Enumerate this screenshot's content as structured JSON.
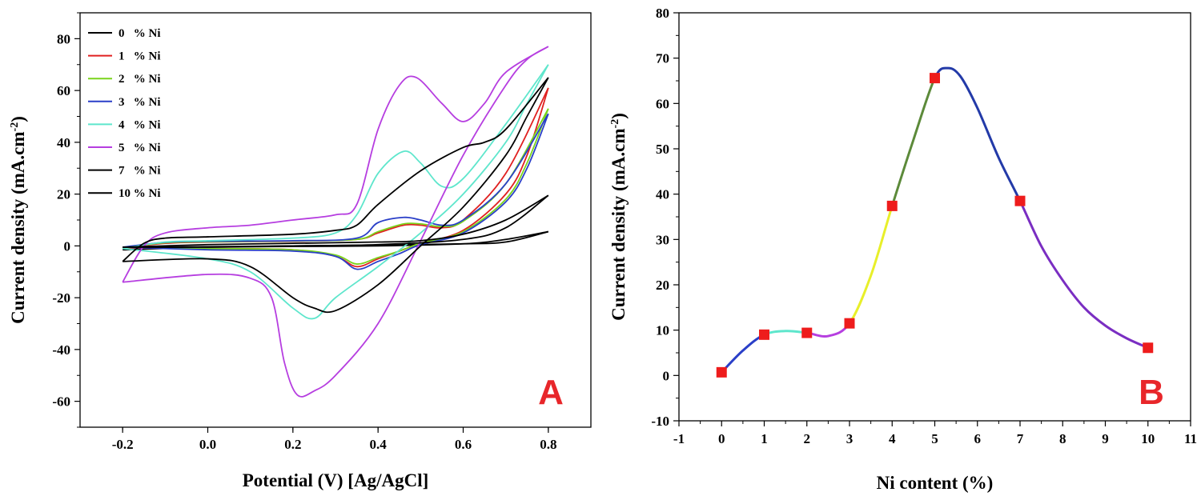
{
  "chart_data": [
    {
      "type": "line",
      "panel_label": "A",
      "xlabel": "Potential (V) [Ag/AgCl]",
      "ylabel": "Current density (mA.cm",
      "ylabel_sup": "-2",
      "ylabel_close": ")",
      "xlim": [
        -0.3,
        0.9
      ],
      "ylim": [
        -70,
        90
      ],
      "x_ticks": [
        -0.2,
        0.0,
        0.2,
        0.4,
        0.6,
        0.8
      ],
      "x_tick_labels": [
        "-0.2",
        "0.0",
        "0.2",
        "0.4",
        "0.6",
        "0.8"
      ],
      "y_ticks": [
        -60,
        -40,
        -20,
        0,
        20,
        40,
        60,
        80
      ],
      "y_tick_labels": [
        "-60",
        "-40",
        "-20",
        "0",
        "20",
        "40",
        "60",
        "80"
      ],
      "legend_position": "top-left",
      "series": [
        {
          "name": "0   % Ni",
          "color": "#000000",
          "forward": [
            [
              -0.2,
              -1.5
            ],
            [
              0.0,
              -0.5
            ],
            [
              0.2,
              -0.2
            ],
            [
              0.4,
              0.0
            ],
            [
              0.6,
              0.8
            ],
            [
              0.7,
              2.5
            ],
            [
              0.8,
              5.5
            ]
          ],
          "reverse": [
            [
              0.8,
              5.5
            ],
            [
              0.7,
              1.5
            ],
            [
              0.6,
              0.8
            ],
            [
              0.4,
              0.3
            ],
            [
              0.2,
              0.0
            ],
            [
              0.0,
              -0.3
            ],
            [
              -0.2,
              -0.5
            ]
          ]
        },
        {
          "name": "1   % Ni",
          "color": "#e02020",
          "forward": [
            [
              -0.2,
              -0.8
            ],
            [
              -0.1,
              1.0
            ],
            [
              0.0,
              1.5
            ],
            [
              0.2,
              1.8
            ],
            [
              0.35,
              2.5
            ],
            [
              0.4,
              5.0
            ],
            [
              0.46,
              8.0
            ],
            [
              0.5,
              8.0
            ],
            [
              0.55,
              7.0
            ],
            [
              0.6,
              10.0
            ],
            [
              0.7,
              28.0
            ],
            [
              0.8,
              61.0
            ]
          ],
          "reverse": [
            [
              0.8,
              61.0
            ],
            [
              0.75,
              35.0
            ],
            [
              0.7,
              20.0
            ],
            [
              0.6,
              6.0
            ],
            [
              0.5,
              1.0
            ],
            [
              0.45,
              -2.0
            ],
            [
              0.4,
              -5.0
            ],
            [
              0.35,
              -8.0
            ],
            [
              0.3,
              -4.0
            ],
            [
              0.2,
              -1.5
            ],
            [
              0.0,
              -1.0
            ],
            [
              -0.2,
              -0.8
            ]
          ]
        },
        {
          "name": "2   % Ni",
          "color": "#7ad41c",
          "forward": [
            [
              -0.2,
              -0.6
            ],
            [
              -0.1,
              1.2
            ],
            [
              0.0,
              1.6
            ],
            [
              0.2,
              1.9
            ],
            [
              0.35,
              2.5
            ],
            [
              0.4,
              5.5
            ],
            [
              0.46,
              8.5
            ],
            [
              0.5,
              8.5
            ],
            [
              0.55,
              7.5
            ],
            [
              0.6,
              9.5
            ],
            [
              0.7,
              24.0
            ],
            [
              0.8,
              53.0
            ]
          ],
          "reverse": [
            [
              0.8,
              53.0
            ],
            [
              0.75,
              32.0
            ],
            [
              0.7,
              18.0
            ],
            [
              0.6,
              5.5
            ],
            [
              0.5,
              1.0
            ],
            [
              0.45,
              -2.0
            ],
            [
              0.4,
              -4.5
            ],
            [
              0.35,
              -7.0
            ],
            [
              0.3,
              -3.5
            ],
            [
              0.2,
              -1.5
            ],
            [
              0.0,
              -1.0
            ],
            [
              -0.2,
              -0.6
            ]
          ]
        },
        {
          "name": "3   % Ni",
          "color": "#2a3fc8",
          "forward": [
            [
              -0.2,
              -0.5
            ],
            [
              -0.1,
              1.4
            ],
            [
              0.0,
              1.8
            ],
            [
              0.2,
              2.0
            ],
            [
              0.35,
              3.0
            ],
            [
              0.4,
              9.0
            ],
            [
              0.46,
              11.0
            ],
            [
              0.5,
              10.0
            ],
            [
              0.55,
              8.0
            ],
            [
              0.6,
              10.0
            ],
            [
              0.7,
              24.0
            ],
            [
              0.8,
              51.0
            ]
          ],
          "reverse": [
            [
              0.8,
              51.0
            ],
            [
              0.75,
              30.0
            ],
            [
              0.7,
              17.0
            ],
            [
              0.6,
              5.0
            ],
            [
              0.5,
              0.5
            ],
            [
              0.45,
              -3.0
            ],
            [
              0.4,
              -6.0
            ],
            [
              0.35,
              -9.0
            ],
            [
              0.3,
              -4.0
            ],
            [
              0.2,
              -2.0
            ],
            [
              0.0,
              -1.5
            ],
            [
              -0.2,
              -0.5
            ]
          ]
        },
        {
          "name": "4   % Ni",
          "color": "#5ee6cc",
          "forward": [
            [
              -0.2,
              -1.0
            ],
            [
              -0.1,
              1.5
            ],
            [
              0.0,
              2.0
            ],
            [
              0.2,
              3.0
            ],
            [
              0.3,
              5.0
            ],
            [
              0.35,
              12.0
            ],
            [
              0.4,
              28.0
            ],
            [
              0.46,
              36.5
            ],
            [
              0.5,
              32.0
            ],
            [
              0.55,
              23.0
            ],
            [
              0.6,
              26.0
            ],
            [
              0.7,
              47.0
            ],
            [
              0.8,
              70.0
            ]
          ],
          "reverse": [
            [
              0.8,
              70.0
            ],
            [
              0.75,
              55.0
            ],
            [
              0.7,
              40.0
            ],
            [
              0.6,
              20.0
            ],
            [
              0.5,
              5.0
            ],
            [
              0.4,
              -8.0
            ],
            [
              0.3,
              -20.0
            ],
            [
              0.25,
              -28.0
            ],
            [
              0.2,
              -24.0
            ],
            [
              0.1,
              -10.0
            ],
            [
              0.0,
              -5.0
            ],
            [
              -0.2,
              -1.0
            ]
          ]
        },
        {
          "name": "5   % Ni",
          "color": "#b63ee0",
          "forward": [
            [
              -0.2,
              -14.0
            ],
            [
              -0.15,
              0.0
            ],
            [
              -0.1,
              5.0
            ],
            [
              0.0,
              7.0
            ],
            [
              0.1,
              8.0
            ],
            [
              0.2,
              10.0
            ],
            [
              0.3,
              12.0
            ],
            [
              0.35,
              16.0
            ],
            [
              0.4,
              45.0
            ],
            [
              0.45,
              62.0
            ],
            [
              0.49,
              65.0
            ],
            [
              0.55,
              55.0
            ],
            [
              0.6,
              48.0
            ],
            [
              0.65,
              55.0
            ],
            [
              0.7,
              67.0
            ],
            [
              0.8,
              77.0
            ]
          ],
          "reverse": [
            [
              0.8,
              77.0
            ],
            [
              0.75,
              72.0
            ],
            [
              0.7,
              62.0
            ],
            [
              0.6,
              35.0
            ],
            [
              0.5,
              2.0
            ],
            [
              0.4,
              -30.0
            ],
            [
              0.3,
              -50.0
            ],
            [
              0.25,
              -56.0
            ],
            [
              0.21,
              -57.5
            ],
            [
              0.18,
              -45.0
            ],
            [
              0.15,
              -20.0
            ],
            [
              0.1,
              -12.5
            ],
            [
              0.0,
              -11.0
            ],
            [
              -0.2,
              -14.0
            ]
          ]
        },
        {
          "name": "7   % Ni",
          "color": "#000000",
          "forward": [
            [
              -0.2,
              -6.0
            ],
            [
              -0.15,
              1.0
            ],
            [
              -0.1,
              3.0
            ],
            [
              0.0,
              3.5
            ],
            [
              0.2,
              4.5
            ],
            [
              0.3,
              6.0
            ],
            [
              0.35,
              8.0
            ],
            [
              0.4,
              16.0
            ],
            [
              0.5,
              29.0
            ],
            [
              0.6,
              38.0
            ],
            [
              0.65,
              40.0
            ],
            [
              0.7,
              45.0
            ],
            [
              0.8,
              65.0
            ]
          ],
          "reverse": [
            [
              0.8,
              65.0
            ],
            [
              0.75,
              50.0
            ],
            [
              0.7,
              35.0
            ],
            [
              0.6,
              15.0
            ],
            [
              0.5,
              0.0
            ],
            [
              0.4,
              -15.0
            ],
            [
              0.3,
              -25.0
            ],
            [
              0.25,
              -24.0
            ],
            [
              0.2,
              -20.0
            ],
            [
              0.1,
              -8.0
            ],
            [
              0.0,
              -5.0
            ],
            [
              -0.2,
              -6.0
            ]
          ]
        },
        {
          "name": "10 % Ni",
          "color": "#000000",
          "forward": [
            [
              -0.2,
              -0.5
            ],
            [
              0.0,
              0.5
            ],
            [
              0.2,
              1.0
            ],
            [
              0.4,
              1.5
            ],
            [
              0.5,
              2.0
            ],
            [
              0.6,
              4.5
            ],
            [
              0.7,
              10.0
            ],
            [
              0.8,
              19.5
            ]
          ],
          "reverse": [
            [
              0.8,
              19.5
            ],
            [
              0.7,
              7.0
            ],
            [
              0.6,
              2.5
            ],
            [
              0.4,
              0.5
            ],
            [
              0.2,
              0.0
            ],
            [
              0.0,
              -0.5
            ],
            [
              -0.2,
              -0.5
            ]
          ]
        }
      ]
    },
    {
      "type": "line",
      "panel_label": "B",
      "xlabel": "Ni content (%)",
      "ylabel": "Current density (mA.cm",
      "ylabel_sup": "-2",
      "ylabel_close": ")",
      "xlim": [
        -1,
        11
      ],
      "ylim": [
        -10,
        80
      ],
      "x_ticks": [
        -1,
        0,
        1,
        2,
        3,
        4,
        5,
        6,
        7,
        8,
        9,
        10,
        11
      ],
      "x_tick_labels": [
        "-1",
        "0",
        "1",
        "2",
        "3",
        "4",
        "5",
        "6",
        "7",
        "8",
        "9",
        "10",
        "11"
      ],
      "y_ticks": [
        -10,
        0,
        10,
        20,
        30,
        40,
        50,
        60,
        70,
        80
      ],
      "y_tick_labels": [
        "-10",
        "0",
        "10",
        "20",
        "30",
        "40",
        "50",
        "60",
        "70",
        "80"
      ],
      "marker_color": "#ee1c1c",
      "points": [
        {
          "x": 0,
          "y": 0.7
        },
        {
          "x": 1,
          "y": 9.0
        },
        {
          "x": 2,
          "y": 9.4
        },
        {
          "x": 3,
          "y": 11.5
        },
        {
          "x": 4,
          "y": 37.4
        },
        {
          "x": 5,
          "y": 65.6
        },
        {
          "x": 7,
          "y": 38.5
        },
        {
          "x": 10,
          "y": 6.1
        }
      ],
      "fit_curve": [
        [
          0,
          0.7
        ],
        [
          0.5,
          5.5
        ],
        [
          1,
          9.0
        ],
        [
          1.5,
          9.8
        ],
        [
          2,
          9.4
        ],
        [
          2.5,
          8.7
        ],
        [
          3,
          11.5
        ],
        [
          3.5,
          22.0
        ],
        [
          4,
          37.4
        ],
        [
          4.5,
          52.0
        ],
        [
          5,
          65.6
        ],
        [
          5.3,
          67.8
        ],
        [
          5.6,
          66.0
        ],
        [
          6,
          59.0
        ],
        [
          6.5,
          48.0
        ],
        [
          7,
          38.5
        ],
        [
          7.5,
          28.5
        ],
        [
          8,
          21.0
        ],
        [
          8.5,
          15.0
        ],
        [
          9,
          11.0
        ],
        [
          9.5,
          8.2
        ],
        [
          10,
          6.1
        ]
      ],
      "segment_colors": [
        "#2a3fc8",
        "#5ee6cc",
        "#b63ee0",
        "#e8ef2a",
        "#5c8a3a",
        "#233aa8",
        "#7a2ec2"
      ]
    }
  ]
}
